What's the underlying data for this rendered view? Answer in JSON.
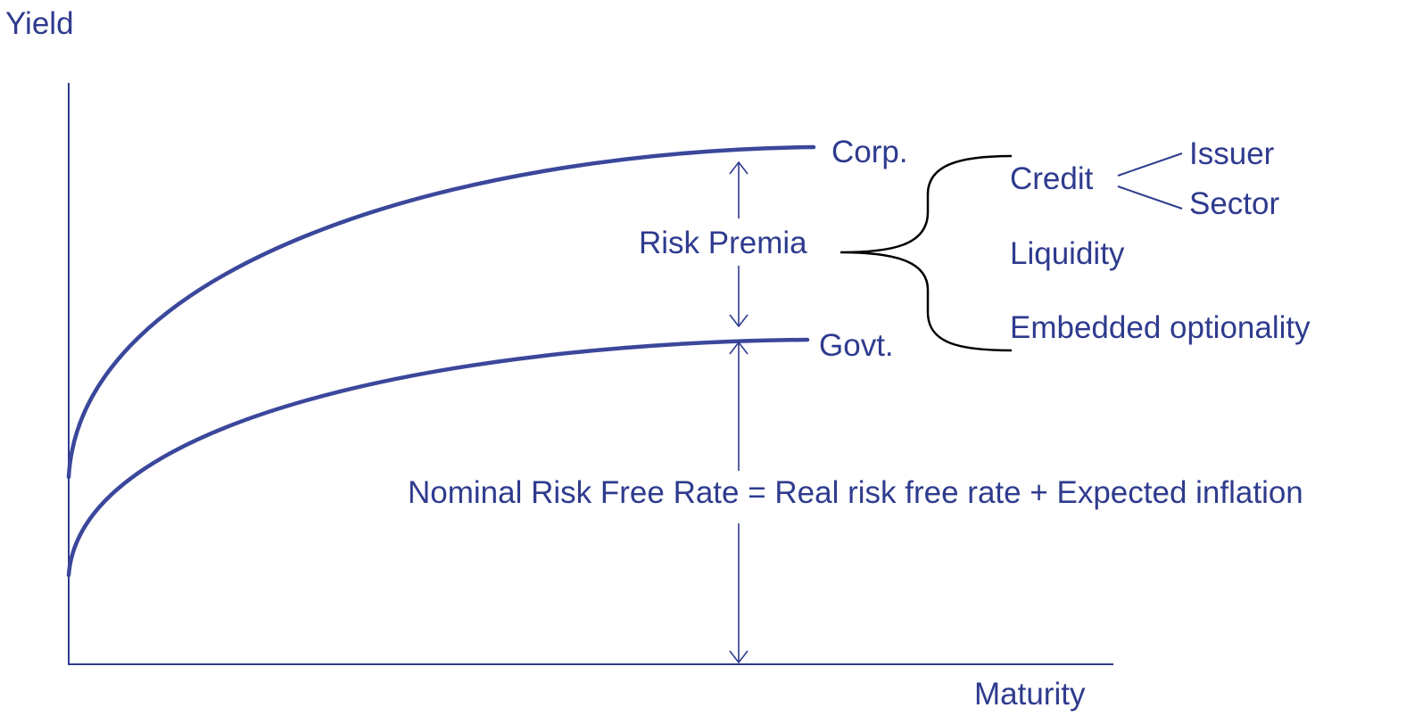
{
  "axes": {
    "y_label": "Yield",
    "x_label": "Maturity"
  },
  "curves": {
    "corporate": "Corp.",
    "government": "Govt."
  },
  "annotations": {
    "risk_premia": "Risk Premia",
    "nominal_rate": "Nominal Risk Free Rate = Real risk free rate + Expected inflation"
  },
  "components": {
    "credit": "Credit",
    "credit_issuer": "Issuer",
    "credit_sector": "Sector",
    "liquidity": "Liquidity",
    "embedded_optionality": "Embedded optionality"
  },
  "colors": {
    "line": "#3a479b",
    "text": "#2e3b8e",
    "brace": "#000000"
  }
}
